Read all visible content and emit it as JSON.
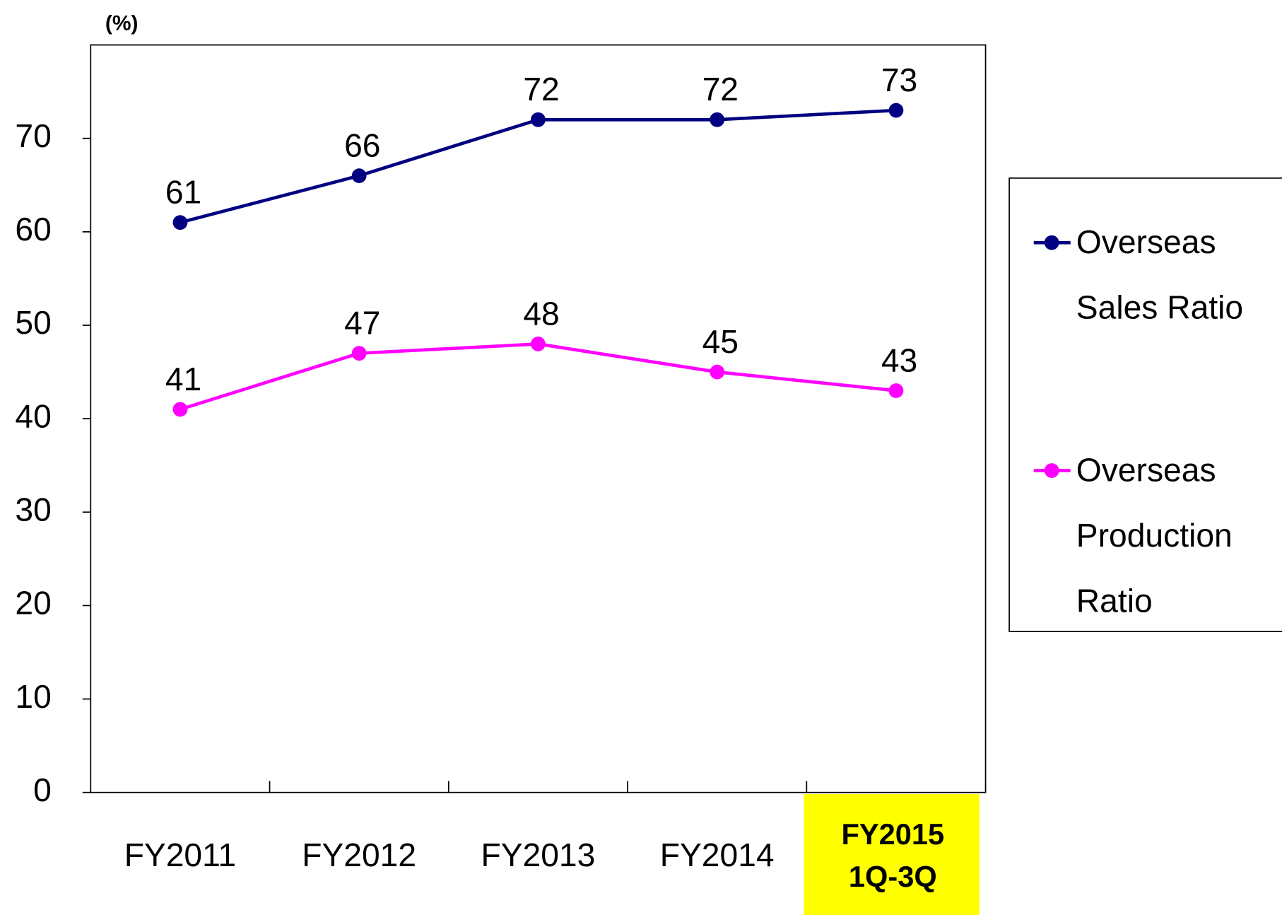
{
  "chart_data": {
    "type": "line",
    "y_unit": "(%)",
    "categories": [
      "FY2011",
      "FY2012",
      "FY2013",
      "FY2014",
      "FY2015\n1Q-3Q"
    ],
    "series": [
      {
        "name": "Overseas Sales Ratio",
        "color": "#000080",
        "values": [
          61,
          66,
          72,
          72,
          73
        ]
      },
      {
        "name": "Overseas Production Ratio",
        "color": "#ff00ff",
        "values": [
          41,
          47,
          48,
          45,
          43
        ]
      }
    ],
    "ylim": [
      0,
      80
    ],
    "yticks": [
      0,
      10,
      20,
      30,
      40,
      50,
      60,
      70
    ],
    "highlight": {
      "index": 4,
      "color": "#ffff00"
    }
  }
}
